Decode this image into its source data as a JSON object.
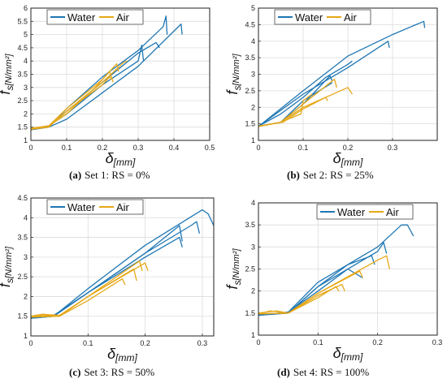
{
  "figure": {
    "panels": [
      {
        "caption_letter": "(a)",
        "caption_text": "Set 1: RS = 0%"
      },
      {
        "caption_letter": "(b)",
        "caption_text": "Set 2: RS = 25%"
      },
      {
        "caption_letter": "(c)",
        "caption_text": "Set 3: RS = 50%"
      },
      {
        "caption_letter": "(d)",
        "caption_text": "Set 4: RS = 100%"
      }
    ]
  },
  "chart_data": [
    {
      "type": "line",
      "xlabel": "δ[mm]",
      "ylabel": "f_s[N/mm²]",
      "xlim": [
        0,
        0.5
      ],
      "ylim": [
        1,
        6
      ],
      "xticks": [
        "0",
        "0.1",
        "0.2",
        "0.3",
        "0.4",
        "0.5"
      ],
      "yticks": [
        "1",
        "1.5",
        "2",
        "2.5",
        "3",
        "3.5",
        "4",
        "4.5",
        "5",
        "5.5",
        "6"
      ],
      "grid": true,
      "legend_position": "top-left",
      "series": [
        {
          "name": "Water",
          "color": "#1f77b4",
          "curves": [
            [
              [
                0,
                1.45
              ],
              [
                0.03,
                1.48
              ],
              [
                0.055,
                1.55
              ],
              [
                0.1,
                2.2
              ],
              [
                0.2,
                3.4
              ],
              [
                0.3,
                4.4
              ],
              [
                0.37,
                5.3
              ],
              [
                0.378,
                5.7
              ],
              [
                0.381,
                5.0
              ]
            ],
            [
              [
                0,
                1.4
              ],
              [
                0.05,
                1.5
              ],
              [
                0.1,
                1.8
              ],
              [
                0.2,
                2.8
              ],
              [
                0.3,
                3.8
              ],
              [
                0.42,
                5.4
              ],
              [
                0.423,
                5.0
              ]
            ],
            [
              [
                0,
                1.42
              ],
              [
                0.05,
                1.52
              ],
              [
                0.1,
                2.1
              ],
              [
                0.2,
                3.2
              ],
              [
                0.3,
                4.3
              ],
              [
                0.35,
                4.7
              ],
              [
                0.36,
                4.5
              ]
            ],
            [
              [
                0,
                1.45
              ],
              [
                0.05,
                1.55
              ],
              [
                0.1,
                2.0
              ],
              [
                0.2,
                3.1
              ],
              [
                0.3,
                4.0
              ],
              [
                0.31,
                4.6
              ],
              [
                0.315,
                4.0
              ]
            ]
          ]
        },
        {
          "name": "Air",
          "color": "#e6a817",
          "curves": [
            [
              [
                0,
                1.45
              ],
              [
                0.05,
                1.55
              ],
              [
                0.1,
                2.2
              ],
              [
                0.2,
                3.3
              ],
              [
                0.24,
                3.9
              ],
              [
                0.245,
                3.6
              ]
            ],
            [
              [
                0,
                1.42
              ],
              [
                0.05,
                1.5
              ],
              [
                0.1,
                2.1
              ],
              [
                0.2,
                3.2
              ],
              [
                0.26,
                3.95
              ],
              [
                0.27,
                4.0
              ]
            ],
            [
              [
                0,
                1.43
              ],
              [
                0.05,
                1.55
              ],
              [
                0.1,
                2.1
              ],
              [
                0.2,
                3.1
              ],
              [
                0.22,
                3.4
              ],
              [
                0.225,
                3.3
              ]
            ],
            [
              [
                0,
                1.46
              ],
              [
                0.05,
                1.55
              ],
              [
                0.1,
                2.0
              ],
              [
                0.18,
                3.0
              ],
              [
                0.22,
                3.6
              ],
              [
                0.23,
                3.2
              ]
            ]
          ]
        }
      ]
    },
    {
      "type": "line",
      "xlabel": "δ[mm]",
      "ylabel": "f_s[N/mm²]",
      "xlim": [
        0,
        0.4
      ],
      "ylim": [
        1,
        5
      ],
      "xticks": [
        "0",
        "0.1",
        "0.2",
        "0.3"
      ],
      "yticks": [
        "1",
        "1.5",
        "2",
        "2.5",
        "3",
        "3.5",
        "4",
        "4.5",
        "5"
      ],
      "grid": true,
      "legend_position": "top-left",
      "series": [
        {
          "name": "Water",
          "color": "#1f77b4",
          "curves": [
            [
              [
                0,
                1.42
              ],
              [
                0.1,
                2.5
              ],
              [
                0.2,
                3.55
              ],
              [
                0.3,
                4.2
              ],
              [
                0.37,
                4.6
              ],
              [
                0.372,
                4.4
              ]
            ],
            [
              [
                0,
                1.42
              ],
              [
                0.1,
                2.4
              ],
              [
                0.2,
                3.2
              ],
              [
                0.29,
                4.0
              ],
              [
                0.293,
                3.8
              ]
            ],
            [
              [
                0,
                1.43
              ],
              [
                0.05,
                1.8
              ],
              [
                0.1,
                2.3
              ],
              [
                0.15,
                2.9
              ],
              [
                0.2,
                3.3
              ],
              [
                0.21,
                3.4
              ]
            ],
            [
              [
                0,
                1.42
              ],
              [
                0.05,
                1.55
              ],
              [
                0.1,
                2.1
              ],
              [
                0.16,
                2.95
              ],
              [
                0.165,
                2.8
              ]
            ],
            [
              [
                0,
                1.43
              ],
              [
                0.05,
                1.55
              ],
              [
                0.1,
                2.2
              ],
              [
                0.16,
                2.7
              ],
              [
                0.165,
                2.75
              ]
            ]
          ]
        },
        {
          "name": "Air",
          "color": "#e6a817",
          "curves": [
            [
              [
                0,
                1.42
              ],
              [
                0.05,
                1.55
              ],
              [
                0.1,
                2.0
              ],
              [
                0.2,
                2.6
              ],
              [
                0.21,
                2.4
              ]
            ],
            [
              [
                0,
                1.42
              ],
              [
                0.05,
                1.55
              ],
              [
                0.1,
                2.1
              ],
              [
                0.17,
                2.85
              ],
              [
                0.175,
                2.6
              ]
            ],
            [
              [
                0,
                1.43
              ],
              [
                0.05,
                1.55
              ],
              [
                0.095,
                1.8
              ],
              [
                0.1,
                2.2
              ],
              [
                0.12,
                2.4
              ]
            ],
            [
              [
                0,
                1.43
              ],
              [
                0.055,
                1.55
              ],
              [
                0.1,
                1.95
              ],
              [
                0.15,
                2.3
              ],
              [
                0.155,
                2.2
              ]
            ]
          ]
        }
      ]
    },
    {
      "type": "line",
      "xlabel": "δ[mm]",
      "ylabel": "f_s[N/mm²]",
      "xlim": [
        0,
        0.32
      ],
      "ylim": [
        1,
        4.5
      ],
      "xticks": [
        "0",
        "0.1",
        "0.2",
        "0.3"
      ],
      "yticks": [
        "1",
        "1.5",
        "2",
        "2.5",
        "3",
        "3.5",
        "4",
        "4.5"
      ],
      "grid": true,
      "legend_position": "top-left",
      "series": [
        {
          "name": "Water",
          "color": "#1f77b4",
          "curves": [
            [
              [
                0,
                1.45
              ],
              [
                0.04,
                1.5
              ],
              [
                0.1,
                2.2
              ],
              [
                0.2,
                3.3
              ],
              [
                0.3,
                4.2
              ],
              [
                0.31,
                4.1
              ],
              [
                0.32,
                3.8
              ]
            ],
            [
              [
                0,
                1.45
              ],
              [
                0.04,
                1.5
              ],
              [
                0.1,
                2.1
              ],
              [
                0.2,
                3.1
              ],
              [
                0.28,
                3.8
              ],
              [
                0.29,
                3.9
              ],
              [
                0.295,
                3.6
              ]
            ],
            [
              [
                0,
                1.45
              ],
              [
                0.04,
                1.5
              ],
              [
                0.1,
                2.1
              ],
              [
                0.2,
                3.1
              ],
              [
                0.26,
                3.8
              ],
              [
                0.265,
                3.4
              ]
            ],
            [
              [
                0,
                1.46
              ],
              [
                0.04,
                1.52
              ],
              [
                0.1,
                2.1
              ],
              [
                0.2,
                3.0
              ],
              [
                0.26,
                3.5
              ],
              [
                0.265,
                3.25
              ]
            ]
          ]
        },
        {
          "name": "Air",
          "color": "#e6a817",
          "curves": [
            [
              [
                0,
                1.5
              ],
              [
                0.02,
                1.55
              ],
              [
                0.05,
                1.5
              ],
              [
                0.1,
                2.0
              ],
              [
                0.2,
                2.85
              ],
              [
                0.205,
                2.65
              ]
            ],
            [
              [
                0,
                1.48
              ],
              [
                0.02,
                1.55
              ],
              [
                0.05,
                1.52
              ],
              [
                0.1,
                2.0
              ],
              [
                0.18,
                2.7
              ],
              [
                0.185,
                2.4
              ]
            ],
            [
              [
                0,
                1.5
              ],
              [
                0.03,
                1.52
              ],
              [
                0.05,
                1.5
              ],
              [
                0.1,
                1.9
              ],
              [
                0.16,
                2.45
              ],
              [
                0.165,
                2.3
              ]
            ],
            [
              [
                0,
                1.48
              ],
              [
                0.05,
                1.5
              ],
              [
                0.1,
                2.0
              ],
              [
                0.19,
                2.9
              ],
              [
                0.195,
                2.65
              ]
            ]
          ]
        }
      ]
    },
    {
      "type": "line",
      "xlabel": "δ[mm]",
      "ylabel": "f_s[N/mm²]",
      "xlim": [
        0,
        0.3
      ],
      "ylim": [
        1,
        4
      ],
      "xticks": [
        "0",
        "0.1",
        "0.2",
        "0.3"
      ],
      "yticks": [
        "1",
        "1.5",
        "2",
        "2.5",
        "3",
        "3.5",
        "4"
      ],
      "grid": true,
      "legend_position": "top-right",
      "series": [
        {
          "name": "Water",
          "color": "#1f77b4",
          "curves": [
            [
              [
                0,
                1.45
              ],
              [
                0.05,
                1.52
              ],
              [
                0.1,
                2.2
              ],
              [
                0.2,
                3.0
              ],
              [
                0.24,
                3.5
              ],
              [
                0.25,
                3.5
              ],
              [
                0.26,
                3.25
              ]
            ],
            [
              [
                0,
                1.45
              ],
              [
                0.05,
                1.5
              ],
              [
                0.1,
                2.1
              ],
              [
                0.2,
                2.9
              ],
              [
                0.21,
                3.1
              ],
              [
                0.215,
                2.85
              ]
            ],
            [
              [
                0,
                1.46
              ],
              [
                0.05,
                1.5
              ],
              [
                0.1,
                2.1
              ],
              [
                0.15,
                2.6
              ],
              [
                0.19,
                2.8
              ],
              [
                0.195,
                2.6
              ]
            ],
            [
              [
                0,
                1.45
              ],
              [
                0.05,
                1.52
              ],
              [
                0.1,
                2.0
              ],
              [
                0.15,
                2.5
              ],
              [
                0.175,
                2.3
              ]
            ]
          ]
        },
        {
          "name": "Air",
          "color": "#e6a817",
          "curves": [
            [
              [
                0,
                1.48
              ],
              [
                0.02,
                1.55
              ],
              [
                0.05,
                1.5
              ],
              [
                0.1,
                1.95
              ],
              [
                0.2,
                2.7
              ],
              [
                0.215,
                2.8
              ],
              [
                0.22,
                2.5
              ]
            ],
            [
              [
                0,
                1.48
              ],
              [
                0.05,
                1.5
              ],
              [
                0.1,
                1.9
              ],
              [
                0.14,
                2.15
              ],
              [
                0.145,
                2.0
              ]
            ],
            [
              [
                0,
                1.5
              ],
              [
                0.03,
                1.55
              ],
              [
                0.05,
                1.5
              ],
              [
                0.1,
                1.85
              ],
              [
                0.13,
                2.1
              ],
              [
                0.135,
                2.0
              ]
            ],
            [
              [
                0,
                1.48
              ],
              [
                0.05,
                1.5
              ],
              [
                0.1,
                1.95
              ],
              [
                0.17,
                2.45
              ],
              [
                0.175,
                2.3
              ]
            ]
          ]
        }
      ]
    }
  ]
}
